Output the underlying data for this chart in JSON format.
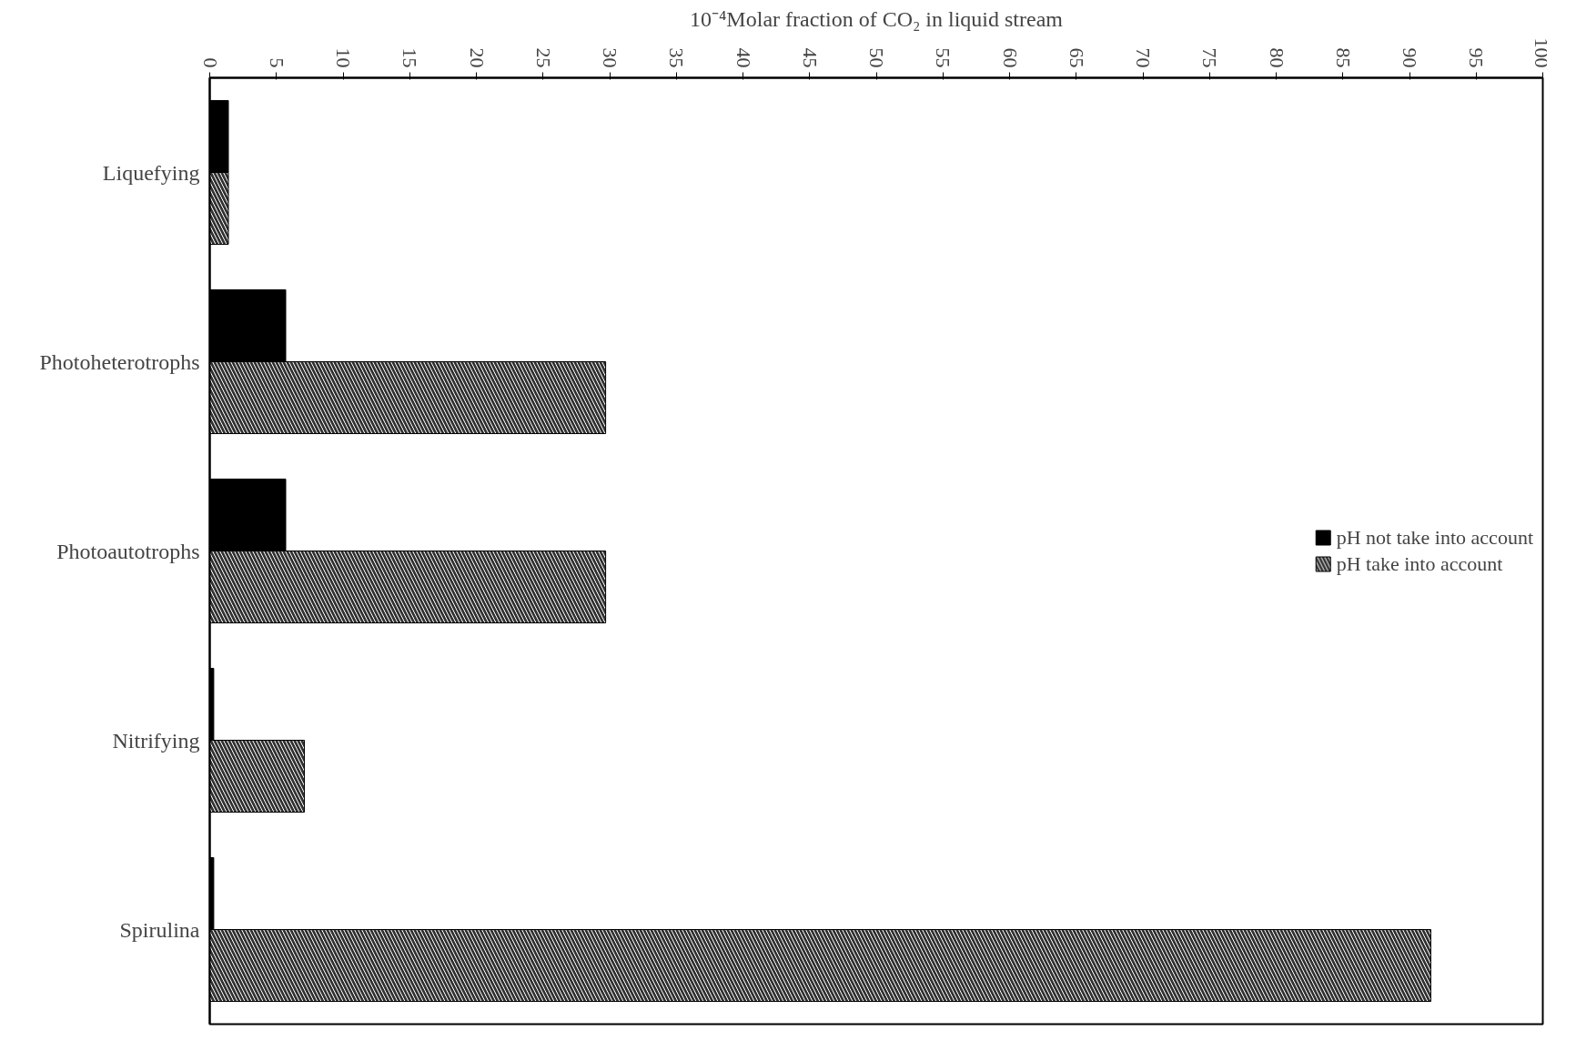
{
  "chart_data": {
    "type": "bar",
    "orientation": "horizontal",
    "title": "10⁻⁴Molar fraction of CO₂ in liquid stream",
    "categories": [
      "Liquefying",
      "Photoheterotrophs",
      "Photoautotrophs",
      "Nitrifying",
      "Spirulina"
    ],
    "series": [
      {
        "name": "pH not take into account",
        "color": "#000000",
        "values": [
          1.4,
          5.7,
          5.7,
          0.3,
          0.3
        ]
      },
      {
        "name": "pH take into account",
        "color": "#333333",
        "values": [
          1.4,
          29.7,
          29.7,
          7.1,
          91.6
        ]
      }
    ],
    "xlim": [
      0,
      100
    ],
    "xticks": [
      0,
      5,
      10,
      15,
      20,
      25,
      30,
      35,
      40,
      45,
      50,
      55,
      60,
      65,
      70,
      75,
      80,
      85,
      90,
      95,
      100
    ],
    "grid": false,
    "legend": "right"
  }
}
